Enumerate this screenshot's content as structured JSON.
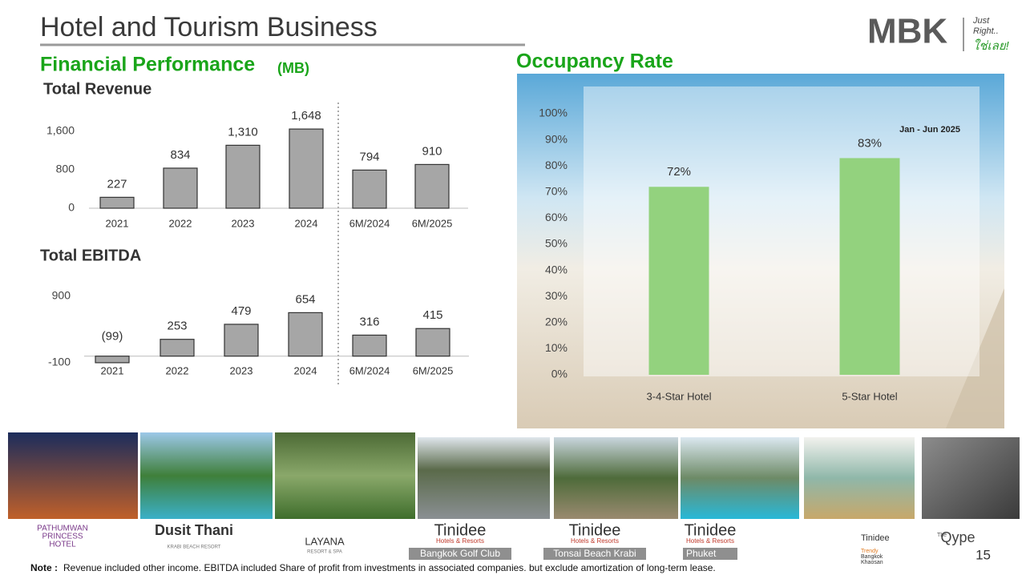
{
  "header": {
    "title": "Hotel and Tourism Business"
  },
  "logo": {
    "brand": "MBK",
    "tagline": [
      "Just",
      "Right..",
      "ใช่เลย!"
    ]
  },
  "financial": {
    "title": "Financial Performance",
    "unit": "(MB)"
  },
  "chart_data": [
    {
      "type": "bar",
      "title": "Total Revenue",
      "categories": [
        "2021",
        "2022",
        "2023",
        "2024",
        "6M/2024",
        "6M/2025"
      ],
      "values": [
        227,
        834,
        1310,
        1648,
        794,
        910
      ],
      "value_labels": [
        "227",
        "834",
        "1,310",
        "1,648",
        "794",
        "910"
      ],
      "color": "#a6a6a6",
      "ylim": [
        0,
        1800
      ],
      "yticks": [
        0,
        800,
        {
          "value": 1600,
          "label": "1,600"
        }
      ]
    },
    {
      "type": "bar",
      "title": "Total EBITDA",
      "categories": [
        "2021",
        "2022",
        "2023",
        "2024",
        "6M/2024",
        "6M/2025"
      ],
      "values": [
        -99,
        253,
        479,
        654,
        316,
        415
      ],
      "value_labels": [
        "(99)",
        "253",
        "479",
        "654",
        "316",
        "415"
      ],
      "color": "#a6a6a6",
      "ylim": [
        -100,
        900
      ],
      "yticks": [
        -100,
        900
      ]
    },
    {
      "type": "bar",
      "title": "Occupancy Rate",
      "annotation": "Jan - Jun 2025",
      "categories": [
        "3-4-Star Hotel",
        "5-Star Hotel"
      ],
      "values": [
        72,
        83
      ],
      "value_labels": [
        "72%",
        "83%"
      ],
      "color": "#93d27e",
      "ylim": [
        0,
        100
      ],
      "yticks": [
        {
          "value": 0,
          "label": "0%"
        },
        {
          "value": 10,
          "label": "10%"
        },
        {
          "value": 20,
          "label": "20%"
        },
        {
          "value": 30,
          "label": "30%"
        },
        {
          "value": 40,
          "label": "40%"
        },
        {
          "value": 50,
          "label": "50%"
        },
        {
          "value": 60,
          "label": "60%"
        },
        {
          "value": 70,
          "label": "70%"
        },
        {
          "value": 80,
          "label": "80%"
        },
        {
          "value": 90,
          "label": "90%"
        },
        {
          "value": 100,
          "label": "100%"
        }
      ]
    }
  ],
  "hotels": [
    {
      "lines": [
        "PATHUMWAN",
        "PRINCESS",
        "HOTEL"
      ]
    },
    {
      "lines": [
        "Dusit Thani",
        "KRABI BEACH RESORT"
      ]
    },
    {
      "lines": [
        "LAYANA",
        "RESORT & SPA"
      ]
    },
    {
      "lines": [
        "Tinidee",
        "Hotels & Resorts"
      ],
      "tag": "Bangkok Golf Club"
    },
    {
      "lines": [
        "Tinidee",
        "Hotels & Resorts"
      ],
      "tag": "Tonsai Beach Krabi"
    },
    {
      "lines": [
        "Tinidee",
        "Hotels & Resorts"
      ],
      "tag": "Phuket"
    },
    {
      "lines": [
        "Tinidee",
        "Trendy",
        "Bangkok",
        "Khaosan"
      ]
    },
    {
      "lines": [
        "The",
        "Qype"
      ]
    }
  ],
  "page_number": "15",
  "note": {
    "label": "Note :",
    "text": "Revenue included other income.  EBITDA  included Share of profit from investments in associated companies. but exclude amortization of long-term lease."
  }
}
